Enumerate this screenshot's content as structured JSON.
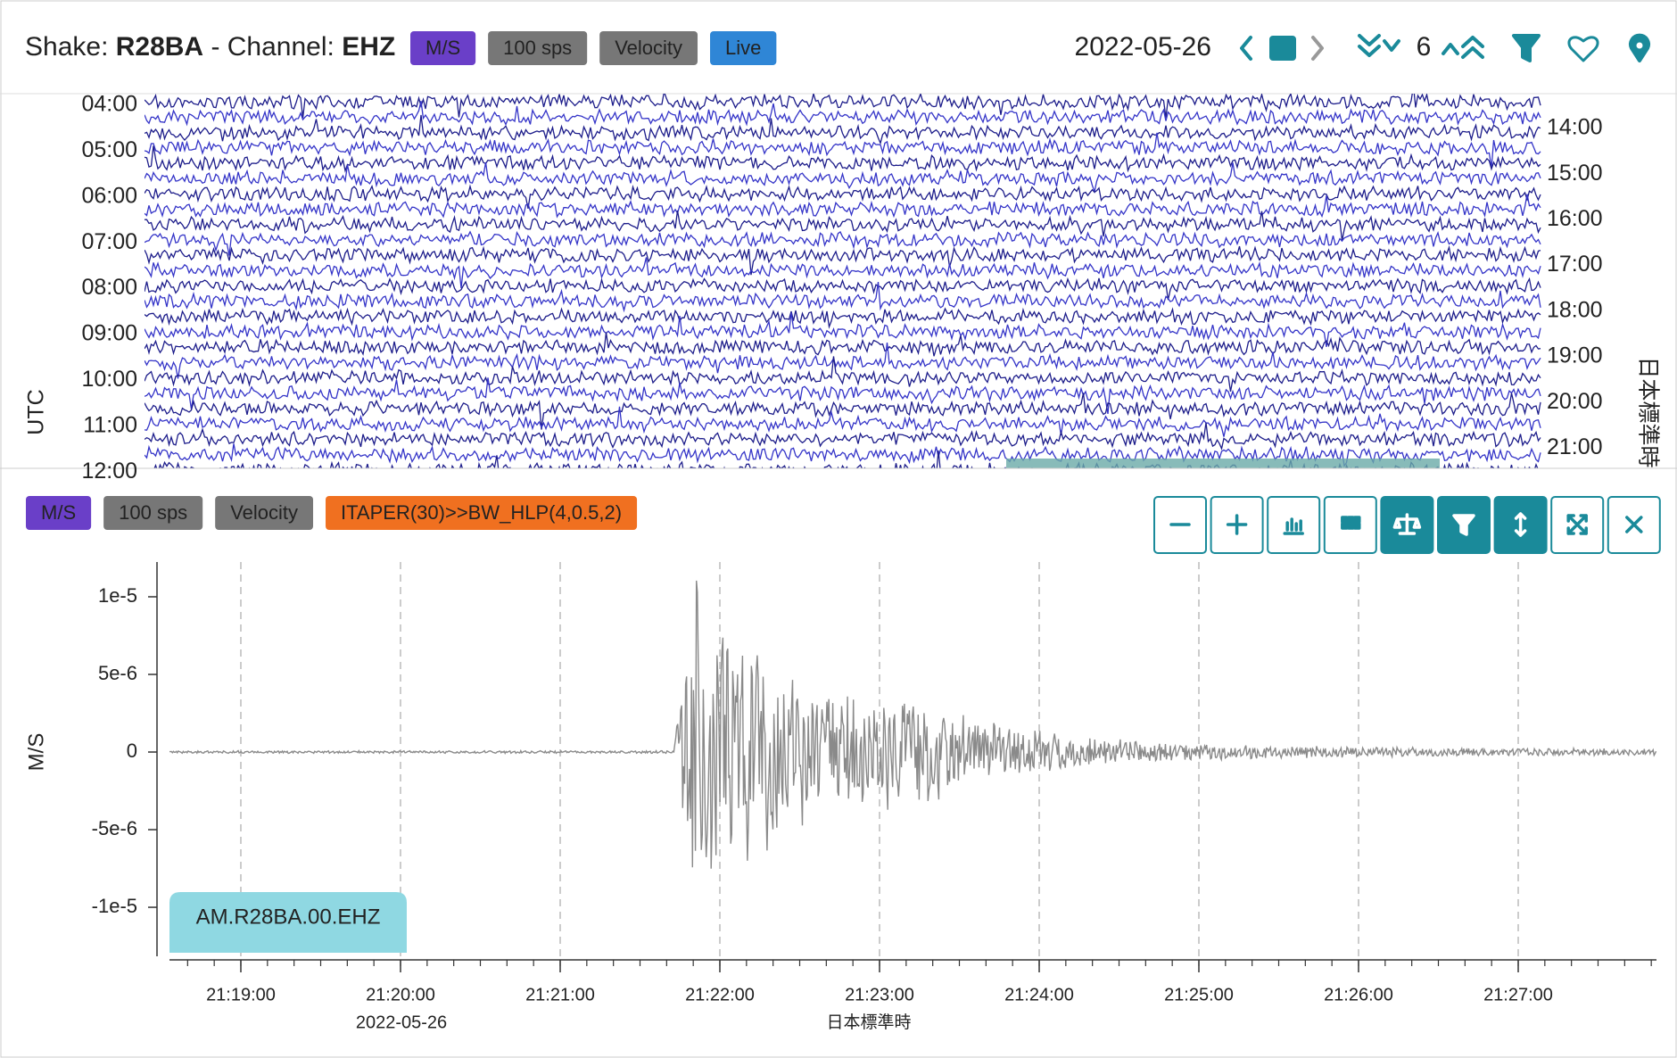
{
  "header": {
    "title_prefix": "Shake: ",
    "station": "R28BA",
    "channel_prefix": " - Channel: ",
    "channel": "EHZ",
    "badges": [
      "M/S",
      "100 sps",
      "Velocity",
      "Live"
    ],
    "date": "2022-05-26",
    "day_count": 6
  },
  "helicorder": {
    "left_axis_label": "UTC",
    "left_labels": [
      "04:00",
      "05:00",
      "06:00",
      "07:00",
      "08:00",
      "09:00",
      "10:00",
      "11:00",
      "12:00"
    ],
    "right_labels": [
      "14:00",
      "15:00",
      "16:00",
      "17:00",
      "18:00",
      "19:00",
      "20:00",
      "21:00"
    ],
    "right_axis_label": "日本標準時"
  },
  "seismogram": {
    "badges": [
      "M/S",
      "100 sps",
      "Velocity",
      "ITAPER(30)>>BW_HLP(4,0.5,2)"
    ],
    "y_axis_label": "M/S",
    "ylim": [
      -1.31e-05,
      1.224e-05
    ],
    "yticks": [
      {
        "value": 1e-05,
        "label": "1e-5"
      },
      {
        "value": 5e-06,
        "label": "5e-6"
      },
      0,
      {
        "value": -5e-06,
        "label": "-5e-6"
      },
      {
        "value": -1e-05,
        "label": "-1e-5"
      }
    ],
    "xticks": [
      "21:19:00",
      "21:20:00",
      "21:21:00",
      "21:22:00",
      "21:23:00",
      "21:24:00",
      "21:25:00",
      "21:26:00",
      "21:27:00"
    ],
    "x_date_label": "2022-05-26",
    "x_axis_label": "日本標準時",
    "channel_label": "AM.R28BA.00.EHZ"
  }
}
